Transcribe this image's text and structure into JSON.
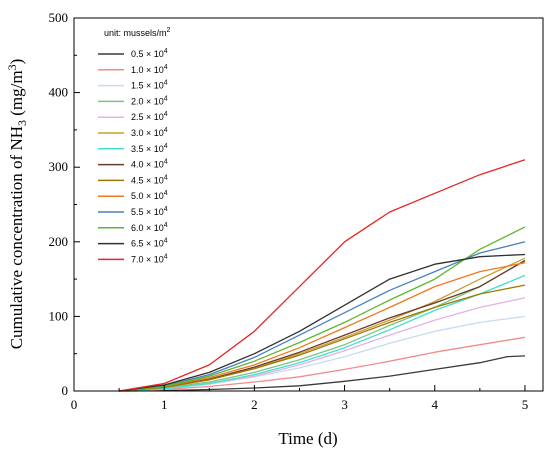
{
  "chart_data": {
    "type": "line",
    "xlabel": "Time (d)",
    "ylabel_prefix": "Cumulative concentration of NH",
    "ylabel_sub": "3",
    "ylabel_mid": " (mg/m",
    "ylabel_sup": "3",
    "ylabel_suffix": ")",
    "xlim": [
      0,
      5.2
    ],
    "ylim": [
      0,
      500
    ],
    "x_ticks": [
      "0",
      "1",
      "2",
      "3",
      "4",
      "5"
    ],
    "y_ticks": [
      "0",
      "100",
      "200",
      "300",
      "400",
      "500"
    ],
    "legend": {
      "title_prefix": "unit: mussels/m",
      "title_sup": "2",
      "placement": "top-left"
    },
    "series": [
      {
        "name": "0.5 × 10",
        "exp": "4",
        "color": "#3a3a3a",
        "values": [
          [
            0.5,
            0
          ],
          [
            1,
            0.5
          ],
          [
            1.5,
            2
          ],
          [
            2,
            4
          ],
          [
            2.5,
            7
          ],
          [
            3,
            13
          ],
          [
            3.5,
            20
          ],
          [
            4,
            29
          ],
          [
            4.5,
            38
          ],
          [
            4.8,
            46
          ],
          [
            5,
            47
          ]
        ]
      },
      {
        "name": "1.0 × 10",
        "exp": "4",
        "color": "#f28b8b",
        "values": [
          [
            0.5,
            0
          ],
          [
            1,
            2
          ],
          [
            1.5,
            6
          ],
          [
            2,
            12
          ],
          [
            2.5,
            19
          ],
          [
            3,
            29
          ],
          [
            3.5,
            40
          ],
          [
            4,
            52
          ],
          [
            4.5,
            62
          ],
          [
            5,
            72
          ]
        ]
      },
      {
        "name": "1.5 × 10",
        "exp": "4",
        "color": "#c6dcef",
        "values": [
          [
            0.5,
            0
          ],
          [
            1,
            3
          ],
          [
            1.5,
            9
          ],
          [
            2,
            19
          ],
          [
            2.5,
            31
          ],
          [
            3,
            46
          ],
          [
            3.5,
            64
          ],
          [
            4,
            80
          ],
          [
            4.5,
            92
          ],
          [
            5,
            100
          ]
        ]
      },
      {
        "name": "2.0 × 10",
        "exp": "4",
        "color": "#7bc47f",
        "values": [
          [
            0.5,
            0
          ],
          [
            1,
            4
          ],
          [
            1.5,
            12
          ],
          [
            2,
            25
          ],
          [
            2.5,
            42
          ],
          [
            3,
            62
          ],
          [
            3.5,
            88
          ],
          [
            4,
            112
          ],
          [
            4.5,
            140
          ],
          [
            5,
            175
          ]
        ]
      },
      {
        "name": "2.5 × 10",
        "exp": "4",
        "color": "#e3b3e3",
        "values": [
          [
            0.5,
            0
          ],
          [
            1,
            3
          ],
          [
            1.5,
            10
          ],
          [
            2,
            20
          ],
          [
            2.5,
            35
          ],
          [
            3,
            54
          ],
          [
            3.5,
            75
          ],
          [
            4,
            95
          ],
          [
            4.5,
            112
          ],
          [
            5,
            125
          ]
        ]
      },
      {
        "name": "3.0 × 10",
        "exp": "4",
        "color": "#c9a030",
        "values": [
          [
            0.5,
            0
          ],
          [
            1,
            5
          ],
          [
            1.5,
            15
          ],
          [
            2,
            30
          ],
          [
            2.5,
            50
          ],
          [
            3,
            72
          ],
          [
            3.5,
            95
          ],
          [
            4,
            120
          ],
          [
            4.5,
            150
          ],
          [
            5,
            178
          ]
        ]
      },
      {
        "name": "3.5 × 10",
        "exp": "4",
        "color": "#40e0d0",
        "values": [
          [
            0.5,
            0
          ],
          [
            1,
            3
          ],
          [
            1.5,
            10
          ],
          [
            2,
            22
          ],
          [
            2.5,
            38
          ],
          [
            3,
            58
          ],
          [
            3.5,
            82
          ],
          [
            4,
            108
          ],
          [
            4.5,
            130
          ],
          [
            5,
            155
          ]
        ]
      },
      {
        "name": "4.0 × 10",
        "exp": "4",
        "color": "#6b3a2e",
        "values": [
          [
            0.5,
            0
          ],
          [
            1,
            5
          ],
          [
            1.5,
            16
          ],
          [
            2,
            32
          ],
          [
            2.5,
            52
          ],
          [
            3,
            75
          ],
          [
            3.5,
            98
          ],
          [
            4,
            118
          ],
          [
            4.5,
            140
          ],
          [
            5,
            175
          ]
        ]
      },
      {
        "name": "4.5 × 10",
        "exp": "4",
        "color": "#a07800",
        "values": [
          [
            0.5,
            0
          ],
          [
            1,
            5
          ],
          [
            1.5,
            15
          ],
          [
            2,
            30
          ],
          [
            2.5,
            48
          ],
          [
            3,
            70
          ],
          [
            3.5,
            92
          ],
          [
            4,
            112
          ],
          [
            4.5,
            130
          ],
          [
            5,
            142
          ]
        ]
      },
      {
        "name": "5.0 × 10",
        "exp": "4",
        "color": "#f07820",
        "values": [
          [
            0.5,
            0
          ],
          [
            1,
            6
          ],
          [
            1.5,
            18
          ],
          [
            2,
            35
          ],
          [
            2.5,
            58
          ],
          [
            3,
            85
          ],
          [
            3.5,
            112
          ],
          [
            4,
            140
          ],
          [
            4.5,
            160
          ],
          [
            5,
            172
          ]
        ]
      },
      {
        "name": "5.5 × 10",
        "exp": "4",
        "color": "#4a80c0",
        "values": [
          [
            0.5,
            0
          ],
          [
            1,
            7
          ],
          [
            1.5,
            22
          ],
          [
            2,
            45
          ],
          [
            2.5,
            75
          ],
          [
            3,
            105
          ],
          [
            3.5,
            135
          ],
          [
            4,
            160
          ],
          [
            4.5,
            185
          ],
          [
            5,
            200
          ]
        ]
      },
      {
        "name": "6.0 × 10",
        "exp": "4",
        "color": "#5cb82e",
        "values": [
          [
            0.5,
            0
          ],
          [
            1,
            6
          ],
          [
            1.5,
            20
          ],
          [
            2,
            40
          ],
          [
            2.5,
            65
          ],
          [
            3,
            92
          ],
          [
            3.5,
            122
          ],
          [
            4,
            150
          ],
          [
            4.5,
            190
          ],
          [
            5,
            220
          ]
        ]
      },
      {
        "name": "6.5 × 10",
        "exp": "4",
        "color": "#303030",
        "values": [
          [
            0.5,
            0
          ],
          [
            1,
            8
          ],
          [
            1.5,
            25
          ],
          [
            2,
            50
          ],
          [
            2.5,
            80
          ],
          [
            3,
            115
          ],
          [
            3.5,
            150
          ],
          [
            4,
            170
          ],
          [
            4.5,
            180
          ],
          [
            5,
            183
          ]
        ]
      },
      {
        "name": "7.0 × 10",
        "exp": "4",
        "color": "#e82424",
        "values": [
          [
            0.5,
            0
          ],
          [
            1,
            10
          ],
          [
            1.5,
            35
          ],
          [
            2,
            80
          ],
          [
            2.5,
            140
          ],
          [
            3,
            200
          ],
          [
            3.5,
            240
          ],
          [
            4,
            265
          ],
          [
            4.5,
            290
          ],
          [
            5,
            310
          ]
        ]
      }
    ]
  }
}
